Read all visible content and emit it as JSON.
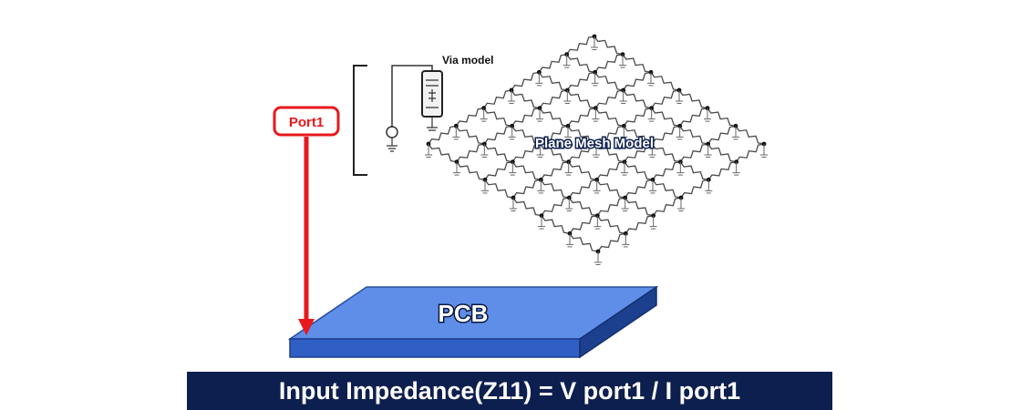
{
  "labels": {
    "via_model": "Via model",
    "port": "Port1",
    "mesh": "Plane Mesh Model",
    "pcb": "PCB",
    "formula": "Input Impedance(Z11) = V port1 / I port1"
  },
  "colors": {
    "port_red": "#e8181c",
    "pcb_top": "#5f8ee8",
    "pcb_front": "#2f5fc4",
    "pcb_side": "#1c3f8e",
    "banner": "#0d1f4e",
    "mesh": "#4a4a4a"
  },
  "mesh_grid": {
    "rows": 6,
    "cols": 6
  }
}
